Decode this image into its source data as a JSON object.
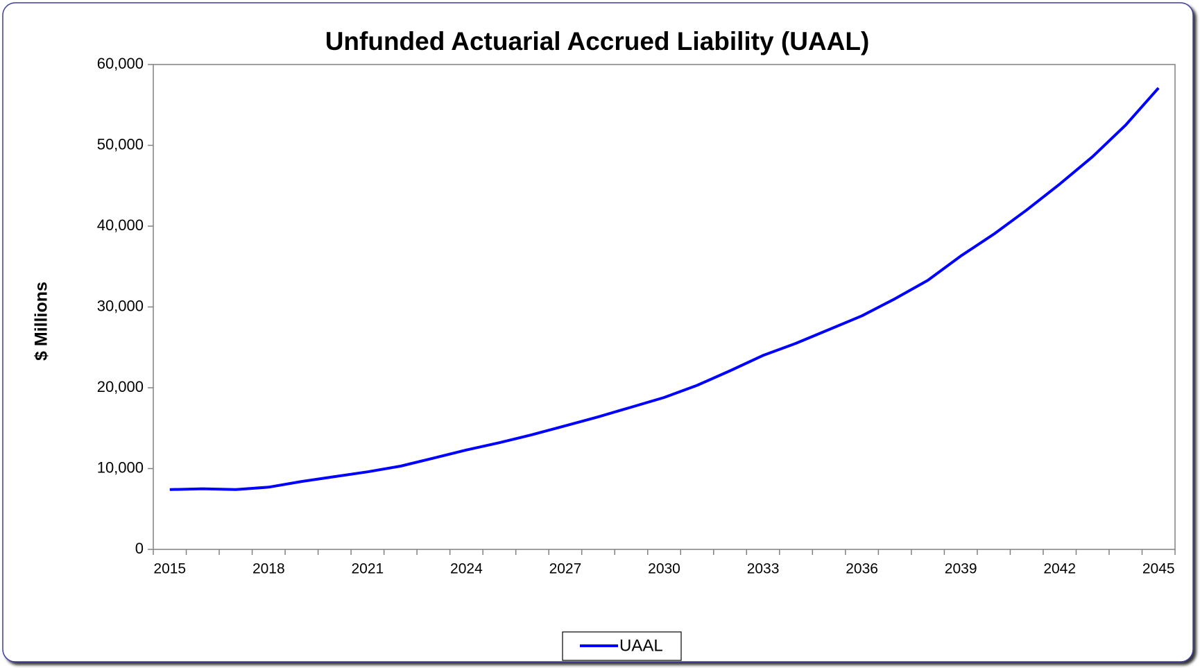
{
  "chart_data": {
    "type": "line",
    "title": "Unfunded Actuarial Accrued Liability (UAAL)",
    "y_label": "$ Millions",
    "categories": [
      "2015",
      null,
      null,
      "2018",
      null,
      null,
      "2021",
      null,
      null,
      "2024",
      null,
      null,
      "2027",
      null,
      null,
      "2030",
      null,
      null,
      "2033",
      null,
      null,
      "2036",
      null,
      null,
      "2039",
      null,
      null,
      "2042",
      null,
      null,
      "2045"
    ],
    "series": [
      {
        "name": "UAAL",
        "color": "#0000ff",
        "values": [
          7400,
          7500,
          7400,
          7700,
          8400,
          9000,
          9600,
          10300,
          11300,
          12300,
          13200,
          14200,
          15300,
          16400,
          17600,
          18800,
          20300,
          22100,
          24000,
          25500,
          27200,
          28900,
          31000,
          33300,
          36300,
          39000,
          42000,
          45200,
          48600,
          52500,
          57100
        ]
      }
    ],
    "ylim": [
      0,
      60000
    ],
    "yticks": [
      0,
      {
        "value": 10000,
        "label": "10,000"
      },
      {
        "value": 20000,
        "label": "20,000"
      },
      {
        "value": 30000,
        "label": "30,000"
      },
      {
        "value": 40000,
        "label": "40,000"
      },
      {
        "value": 50000,
        "label": "50,000"
      },
      {
        "value": 60000,
        "label": "60,000"
      }
    ],
    "legend": "bottom"
  }
}
